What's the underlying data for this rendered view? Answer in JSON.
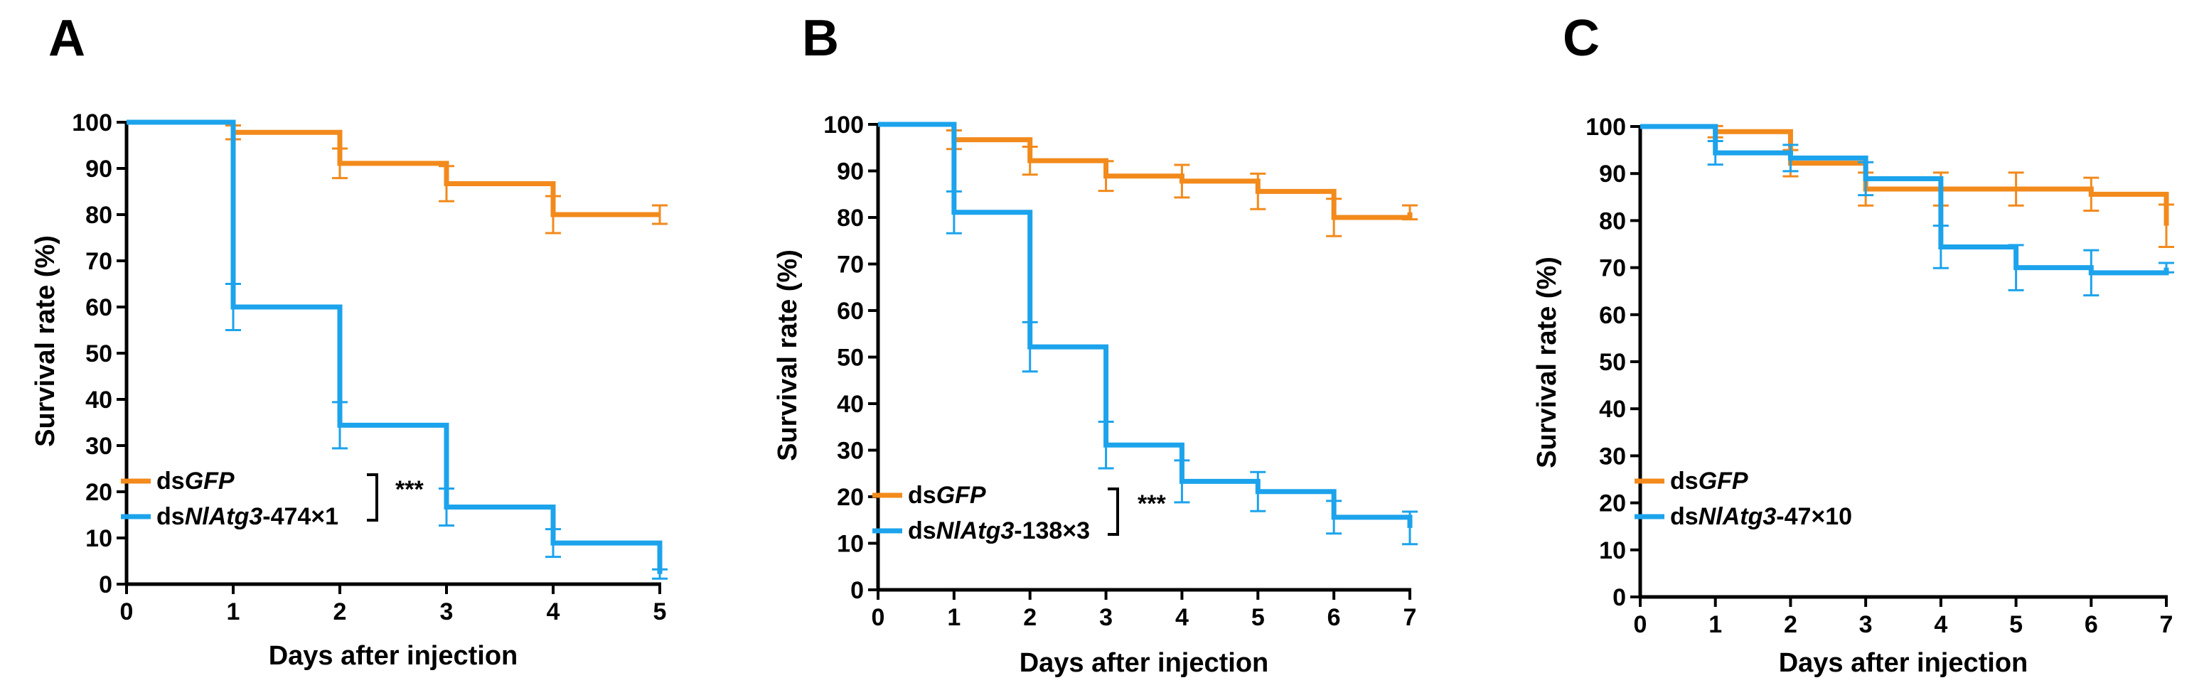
{
  "colors": {
    "gfp": "#f28a1c",
    "atg3": "#1ca3ec",
    "axis": "#000000"
  },
  "chart_data": [
    {
      "type": "line",
      "panel": "A",
      "xlabel": "Days after injection",
      "ylabel": "Survival rate (%)",
      "xlim": [
        0,
        5
      ],
      "ylim": [
        0,
        100
      ],
      "xticks": [
        0,
        1,
        2,
        3,
        4,
        5
      ],
      "yticks": [
        0,
        10,
        20,
        30,
        40,
        50,
        60,
        70,
        80,
        90,
        100
      ],
      "significance": "***",
      "legend_position": "bottom-left",
      "series": [
        {
          "name": "dsGFP",
          "name_plain": "ds",
          "name_italic": "GFP",
          "name_suffix": "",
          "color_key": "gfp",
          "x": [
            0,
            1,
            2,
            3,
            4,
            5
          ],
          "y": [
            100,
            97.8,
            91.1,
            86.7,
            80.0,
            80.0
          ],
          "err": [
            0,
            1.5,
            3.2,
            3.8,
            4.0,
            2.0
          ]
        },
        {
          "name": "dsNlAtg3-474×1",
          "name_plain": "ds",
          "name_italic": "NlAtg3",
          "name_suffix": "-474×1",
          "color_key": "atg3",
          "x": [
            0,
            1,
            2,
            3,
            4,
            5
          ],
          "y": [
            100,
            60.0,
            34.4,
            16.7,
            8.9,
            2.2
          ],
          "err": [
            0,
            5.0,
            5.0,
            4.0,
            3.0,
            1.0
          ]
        }
      ]
    },
    {
      "type": "line",
      "panel": "B",
      "xlabel": "Days after injection",
      "ylabel": "Survival rate (%)",
      "xlim": [
        0,
        7
      ],
      "ylim": [
        0,
        100
      ],
      "xticks": [
        0,
        1,
        2,
        3,
        4,
        5,
        6,
        7
      ],
      "yticks": [
        0,
        10,
        20,
        30,
        40,
        50,
        60,
        70,
        80,
        90,
        100
      ],
      "significance": "***",
      "legend_position": "bottom-left",
      "series": [
        {
          "name": "dsGFP",
          "name_plain": "ds",
          "name_italic": "GFP",
          "name_suffix": "",
          "color_key": "gfp",
          "x": [
            0,
            1,
            2,
            3,
            4,
            5,
            6,
            7
          ],
          "y": [
            100,
            96.7,
            92.2,
            88.9,
            87.8,
            85.6,
            80.0,
            81.1
          ],
          "err": [
            0,
            2.0,
            3.0,
            3.2,
            3.5,
            3.8,
            4.0,
            1.5
          ]
        },
        {
          "name": "dsNlAtg3-138×3",
          "name_plain": "ds",
          "name_italic": "NlAtg3",
          "name_suffix": "-138×3",
          "color_key": "atg3",
          "x": [
            0,
            1,
            2,
            3,
            4,
            5,
            6,
            7
          ],
          "y": [
            100,
            81.1,
            52.2,
            31.1,
            23.3,
            21.1,
            15.6,
            13.3
          ],
          "err": [
            0,
            4.5,
            5.3,
            5.0,
            4.5,
            4.2,
            3.5,
            3.5
          ]
        }
      ]
    },
    {
      "type": "line",
      "panel": "C",
      "xlabel": "Days after injection",
      "ylabel": "Survival rate (%)",
      "xlim": [
        0,
        7
      ],
      "ylim": [
        0,
        100
      ],
      "xticks": [
        0,
        1,
        2,
        3,
        4,
        5,
        6,
        7
      ],
      "yticks": [
        0,
        10,
        20,
        30,
        40,
        50,
        60,
        70,
        80,
        90,
        100
      ],
      "significance": "",
      "legend_position": "bottom-left",
      "series": [
        {
          "name": "dsGFP",
          "name_plain": "ds",
          "name_italic": "GFP",
          "name_suffix": "",
          "color_key": "gfp",
          "x": [
            0,
            1,
            2,
            3,
            4,
            5,
            6,
            7
          ],
          "y": [
            100,
            98.9,
            92.2,
            86.7,
            86.7,
            86.7,
            85.6,
            78.9
          ],
          "err": [
            0,
            1.2,
            2.8,
            3.5,
            3.5,
            3.5,
            3.5,
            4.5
          ]
        },
        {
          "name": "dsNlAtg3-47×10",
          "name_plain": "ds",
          "name_italic": "NlAtg3",
          "name_suffix": "-47×10",
          "color_key": "atg3",
          "x": [
            0,
            1,
            2,
            3,
            4,
            5,
            6,
            7
          ],
          "y": [
            100,
            94.4,
            93.3,
            88.9,
            74.4,
            70.0,
            68.9,
            70.0
          ],
          "err": [
            0,
            2.5,
            2.8,
            3.5,
            4.5,
            4.8,
            4.8,
            1.0
          ]
        }
      ]
    }
  ]
}
